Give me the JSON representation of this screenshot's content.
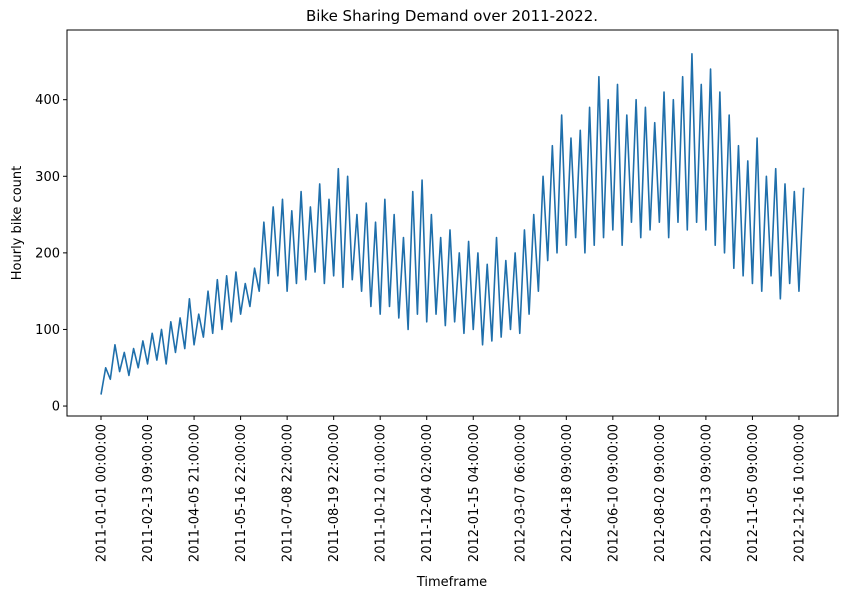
{
  "chart_data": {
    "type": "line",
    "title": "Bike Sharing Demand over 2011-2022.",
    "x_label": "Timeframe",
    "y_label": "Hourly bike count",
    "x": [
      0,
      100,
      200,
      300,
      400,
      500,
      600,
      700,
      800,
      900,
      1000,
      1100,
      1200,
      1300,
      1400,
      1500,
      1600,
      1700,
      1800,
      1900,
      2000,
      2100,
      2200,
      2300,
      2400,
      2500,
      2600,
      2700,
      2800,
      2900,
      3000,
      3100,
      3200,
      3300,
      3400,
      3500,
      3600,
      3700,
      3800,
      3900,
      4000,
      4100,
      4200,
      4300,
      4400,
      4500,
      4600,
      4700,
      4800,
      4900,
      5000,
      5100,
      5200,
      5300,
      5400,
      5500,
      5600,
      5700,
      5800,
      5900,
      6000,
      6100,
      6200,
      6300,
      6400,
      6500,
      6600,
      6700,
      6800,
      6900,
      7000,
      7100,
      7200,
      7300,
      7400,
      7500,
      7600,
      7700,
      7800,
      7900,
      8000,
      8100,
      8200,
      8300,
      8400,
      8500,
      8600,
      8700,
      8800,
      8900,
      9000,
      9100,
      9200,
      9300,
      9400,
      9500,
      9600,
      9700,
      9800,
      9900,
      10000,
      10100,
      10200,
      10300,
      10400,
      10500,
      10600,
      10700,
      10800,
      10900,
      11000,
      11100,
      11200,
      11300,
      11400,
      11500,
      11600,
      11700,
      11800,
      11900,
      12000,
      12100,
      12200,
      12300,
      12400,
      12500,
      12600,
      12700,
      12800,
      12900,
      13000,
      13100,
      13200,
      13300,
      13400,
      13500,
      13600,
      13700,
      13800,
      13900,
      14000,
      14100,
      14200,
      14300,
      14400,
      14500,
      14600,
      14700,
      14800,
      14900,
      15000,
      15100
    ],
    "series": [
      {
        "name": "Hourly bike count",
        "color": "#1f6fab",
        "values": [
          15,
          50,
          35,
          80,
          45,
          70,
          40,
          75,
          50,
          85,
          55,
          95,
          60,
          100,
          55,
          110,
          70,
          115,
          75,
          140,
          80,
          120,
          90,
          150,
          95,
          165,
          100,
          170,
          110,
          175,
          120,
          160,
          130,
          180,
          150,
          240,
          160,
          260,
          170,
          270,
          150,
          255,
          160,
          280,
          165,
          260,
          175,
          290,
          160,
          270,
          170,
          310,
          155,
          300,
          165,
          250,
          150,
          265,
          130,
          240,
          120,
          270,
          130,
          250,
          115,
          220,
          100,
          280,
          120,
          295,
          110,
          250,
          120,
          220,
          105,
          230,
          110,
          200,
          95,
          215,
          100,
          200,
          80,
          185,
          85,
          220,
          90,
          190,
          100,
          200,
          95,
          230,
          120,
          250,
          150,
          300,
          190,
          340,
          200,
          380,
          210,
          350,
          220,
          360,
          200,
          390,
          210,
          430,
          220,
          400,
          230,
          420,
          210,
          380,
          240,
          400,
          220,
          390,
          230,
          370,
          240,
          410,
          220,
          400,
          240,
          430,
          230,
          460,
          240,
          420,
          230,
          440,
          210,
          410,
          200,
          380,
          180,
          340,
          170,
          320,
          160,
          350,
          150,
          300,
          170,
          310,
          140,
          290,
          160,
          280,
          150,
          285
        ]
      }
    ],
    "xlim": [
      -731,
      15839
    ],
    "ylim": [
      -13,
      491
    ],
    "xticks": [
      {
        "value": 0,
        "label": "2011-01-01 00:00:00"
      },
      {
        "value": 1000,
        "label": "2011-02-13 09:00:00"
      },
      {
        "value": 2000,
        "label": "2011-04-05 21:00:00"
      },
      {
        "value": 3000,
        "label": "2011-05-16 22:00:00"
      },
      {
        "value": 4000,
        "label": "2011-07-08 22:00:00"
      },
      {
        "value": 5000,
        "label": "2011-08-19 22:00:00"
      },
      {
        "value": 6000,
        "label": "2011-10-12 01:00:00"
      },
      {
        "value": 7000,
        "label": "2011-12-04 02:00:00"
      },
      {
        "value": 8000,
        "label": "2012-01-15 04:00:00"
      },
      {
        "value": 9000,
        "label": "2012-03-07 06:00:00"
      },
      {
        "value": 10000,
        "label": "2012-04-18 09:00:00"
      },
      {
        "value": 11000,
        "label": "2012-06-10 09:00:00"
      },
      {
        "value": 12000,
        "label": "2012-08-02 09:00:00"
      },
      {
        "value": 13000,
        "label": "2012-09-13 09:00:00"
      },
      {
        "value": 14000,
        "label": "2012-11-05 09:00:00"
      },
      {
        "value": 15000,
        "label": "2012-12-16 10:00:00"
      }
    ],
    "yticks": [
      0,
      100,
      200,
      300,
      400
    ],
    "grid": false
  }
}
